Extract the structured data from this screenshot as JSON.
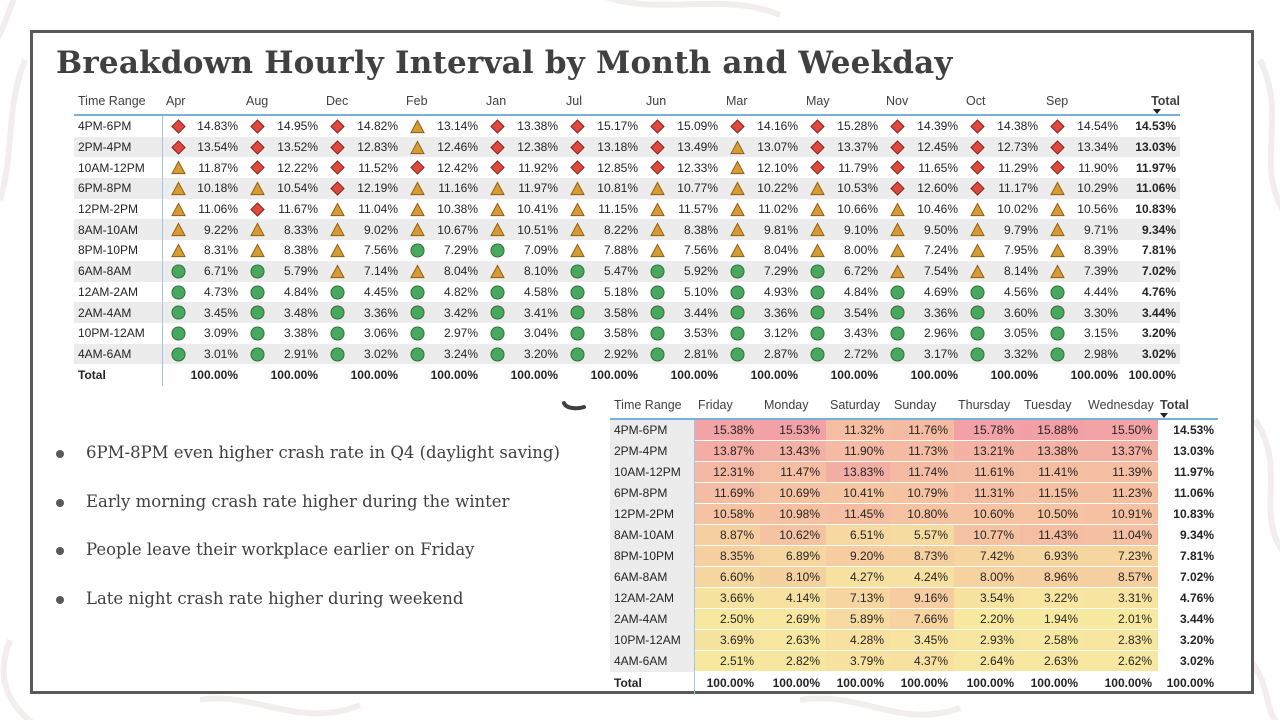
{
  "slide": {
    "title": "Breakdown Hourly Interval by Month and Weekday"
  },
  "colors": {
    "frame": "#595959",
    "title": "#404040",
    "header_underline": "#79b0de",
    "band": "#ececec",
    "diamond_red": "#e0483c",
    "triangle_orange": "#d89a32",
    "circle_green": "#48a85e",
    "heat_high": "#f2a4a8",
    "heat_low": "#f7e8a0"
  },
  "icon_legend": {
    "diamond": "red-diamond-icon",
    "triangle": "orange-triangle-icon",
    "circle": "green-circle-icon"
  },
  "month_table": {
    "header_label": "Time Range",
    "total_header": "Total",
    "months": [
      "Apr",
      "Aug",
      "Dec",
      "Feb",
      "Jan",
      "Jul",
      "Jun",
      "Mar",
      "May",
      "Nov",
      "Oct",
      "Sep"
    ],
    "rows": [
      {
        "label": "4PM-6PM",
        "values": [
          "14.83%",
          "14.95%",
          "14.82%",
          "13.14%",
          "13.38%",
          "15.17%",
          "15.09%",
          "14.16%",
          "15.28%",
          "14.39%",
          "14.38%",
          "14.54%"
        ],
        "icons": [
          "D",
          "D",
          "D",
          "T",
          "D",
          "D",
          "D",
          "D",
          "D",
          "D",
          "D",
          "D"
        ],
        "total": "14.53%"
      },
      {
        "label": "2PM-4PM",
        "values": [
          "13.54%",
          "13.52%",
          "12.83%",
          "12.46%",
          "12.38%",
          "13.18%",
          "13.49%",
          "13.07%",
          "13.37%",
          "12.45%",
          "12.73%",
          "13.34%"
        ],
        "icons": [
          "D",
          "D",
          "D",
          "T",
          "D",
          "D",
          "D",
          "T",
          "D",
          "D",
          "D",
          "D"
        ],
        "total": "13.03%"
      },
      {
        "label": "10AM-12PM",
        "values": [
          "11.87%",
          "12.22%",
          "11.52%",
          "12.42%",
          "11.92%",
          "12.85%",
          "12.33%",
          "12.10%",
          "11.79%",
          "11.65%",
          "11.29%",
          "11.90%"
        ],
        "icons": [
          "T",
          "D",
          "D",
          "D",
          "D",
          "D",
          "D",
          "T",
          "D",
          "D",
          "D",
          "D"
        ],
        "total": "11.97%"
      },
      {
        "label": "6PM-8PM",
        "values": [
          "10.18%",
          "10.54%",
          "12.19%",
          "11.16%",
          "11.97%",
          "10.81%",
          "10.77%",
          "10.22%",
          "10.53%",
          "12.60%",
          "11.17%",
          "10.29%"
        ],
        "icons": [
          "T",
          "T",
          "D",
          "T",
          "T",
          "T",
          "T",
          "T",
          "T",
          "D",
          "D",
          "T"
        ],
        "total": "11.06%"
      },
      {
        "label": "12PM-2PM",
        "values": [
          "11.06%",
          "11.67%",
          "11.04%",
          "10.38%",
          "10.41%",
          "11.15%",
          "11.57%",
          "11.02%",
          "10.66%",
          "10.46%",
          "10.02%",
          "10.56%"
        ],
        "icons": [
          "T",
          "D",
          "T",
          "T",
          "T",
          "T",
          "T",
          "T",
          "T",
          "T",
          "T",
          "T"
        ],
        "total": "10.83%"
      },
      {
        "label": "8AM-10AM",
        "values": [
          "9.22%",
          "8.33%",
          "9.02%",
          "10.67%",
          "10.51%",
          "8.22%",
          "8.38%",
          "9.81%",
          "9.10%",
          "9.50%",
          "9.79%",
          "9.71%"
        ],
        "icons": [
          "T",
          "T",
          "T",
          "T",
          "T",
          "T",
          "T",
          "T",
          "T",
          "T",
          "T",
          "T"
        ],
        "total": "9.34%"
      },
      {
        "label": "8PM-10PM",
        "values": [
          "8.31%",
          "8.38%",
          "7.56%",
          "7.29%",
          "7.09%",
          "7.88%",
          "7.56%",
          "8.04%",
          "8.00%",
          "7.24%",
          "7.95%",
          "8.39%"
        ],
        "icons": [
          "T",
          "T",
          "T",
          "C",
          "C",
          "T",
          "T",
          "T",
          "T",
          "T",
          "T",
          "T"
        ],
        "total": "7.81%"
      },
      {
        "label": "6AM-8AM",
        "values": [
          "6.71%",
          "5.79%",
          "7.14%",
          "8.04%",
          "8.10%",
          "5.47%",
          "5.92%",
          "7.29%",
          "6.72%",
          "7.54%",
          "8.14%",
          "7.39%"
        ],
        "icons": [
          "C",
          "C",
          "T",
          "T",
          "T",
          "C",
          "C",
          "C",
          "C",
          "T",
          "T",
          "T"
        ],
        "total": "7.02%"
      },
      {
        "label": "12AM-2AM",
        "values": [
          "4.73%",
          "4.84%",
          "4.45%",
          "4.82%",
          "4.58%",
          "5.18%",
          "5.10%",
          "4.93%",
          "4.84%",
          "4.69%",
          "4.56%",
          "4.44%"
        ],
        "icons": [
          "C",
          "C",
          "C",
          "C",
          "C",
          "C",
          "C",
          "C",
          "C",
          "C",
          "C",
          "C"
        ],
        "total": "4.76%"
      },
      {
        "label": "2AM-4AM",
        "values": [
          "3.45%",
          "3.48%",
          "3.36%",
          "3.42%",
          "3.41%",
          "3.58%",
          "3.44%",
          "3.36%",
          "3.54%",
          "3.36%",
          "3.60%",
          "3.30%"
        ],
        "icons": [
          "C",
          "C",
          "C",
          "C",
          "C",
          "C",
          "C",
          "C",
          "C",
          "C",
          "C",
          "C"
        ],
        "total": "3.44%"
      },
      {
        "label": "10PM-12AM",
        "values": [
          "3.09%",
          "3.38%",
          "3.06%",
          "2.97%",
          "3.04%",
          "3.58%",
          "3.53%",
          "3.12%",
          "3.43%",
          "2.96%",
          "3.05%",
          "3.15%"
        ],
        "icons": [
          "C",
          "C",
          "C",
          "C",
          "C",
          "C",
          "C",
          "C",
          "C",
          "C",
          "C",
          "C"
        ],
        "total": "3.20%"
      },
      {
        "label": "4AM-6AM",
        "values": [
          "3.01%",
          "2.91%",
          "3.02%",
          "3.24%",
          "3.20%",
          "2.92%",
          "2.81%",
          "2.87%",
          "2.72%",
          "3.17%",
          "3.32%",
          "2.98%"
        ],
        "icons": [
          "C",
          "C",
          "C",
          "C",
          "C",
          "C",
          "C",
          "C",
          "C",
          "C",
          "C",
          "C"
        ],
        "total": "3.02%"
      }
    ],
    "total_row": {
      "label": "Total",
      "values": [
        "100.00%",
        "100.00%",
        "100.00%",
        "100.00%",
        "100.00%",
        "100.00%",
        "100.00%",
        "100.00%",
        "100.00%",
        "100.00%",
        "100.00%",
        "100.00%"
      ],
      "total": "100.00%"
    }
  },
  "weekday_table": {
    "header_label": "Time Range",
    "total_header": "Total",
    "days": [
      "Friday",
      "Monday",
      "Saturday",
      "Sunday",
      "Thursday",
      "Tuesday",
      "Wednesday"
    ],
    "rows": [
      {
        "label": "4PM-6PM",
        "values": [
          "15.38%",
          "15.53%",
          "11.32%",
          "11.76%",
          "15.78%",
          "15.88%",
          "15.50%"
        ],
        "total": "14.53%"
      },
      {
        "label": "2PM-4PM",
        "values": [
          "13.87%",
          "13.43%",
          "11.90%",
          "11.73%",
          "13.21%",
          "13.38%",
          "13.37%"
        ],
        "total": "13.03%"
      },
      {
        "label": "10AM-12PM",
        "values": [
          "12.31%",
          "11.47%",
          "13.83%",
          "11.74%",
          "11.61%",
          "11.41%",
          "11.39%"
        ],
        "total": "11.97%"
      },
      {
        "label": "6PM-8PM",
        "values": [
          "11.69%",
          "10.69%",
          "10.41%",
          "10.79%",
          "11.31%",
          "11.15%",
          "11.23%"
        ],
        "total": "11.06%"
      },
      {
        "label": "12PM-2PM",
        "values": [
          "10.58%",
          "10.98%",
          "11.45%",
          "10.80%",
          "10.60%",
          "10.50%",
          "10.91%"
        ],
        "total": "10.83%"
      },
      {
        "label": "8AM-10AM",
        "values": [
          "8.87%",
          "10.62%",
          "6.51%",
          "5.57%",
          "10.77%",
          "11.43%",
          "11.04%"
        ],
        "total": "9.34%"
      },
      {
        "label": "8PM-10PM",
        "values": [
          "8.35%",
          "6.89%",
          "9.20%",
          "8.73%",
          "7.42%",
          "6.93%",
          "7.23%"
        ],
        "total": "7.81%"
      },
      {
        "label": "6AM-8AM",
        "values": [
          "6.60%",
          "8.10%",
          "4.27%",
          "4.24%",
          "8.00%",
          "8.96%",
          "8.57%"
        ],
        "total": "7.02%"
      },
      {
        "label": "12AM-2AM",
        "values": [
          "3.66%",
          "4.14%",
          "7.13%",
          "9.16%",
          "3.54%",
          "3.22%",
          "3.31%"
        ],
        "total": "4.76%"
      },
      {
        "label": "2AM-4AM",
        "values": [
          "2.50%",
          "2.69%",
          "5.89%",
          "7.66%",
          "2.20%",
          "1.94%",
          "2.01%"
        ],
        "total": "3.44%"
      },
      {
        "label": "10PM-12AM",
        "values": [
          "3.69%",
          "2.63%",
          "4.28%",
          "3.45%",
          "2.93%",
          "2.58%",
          "2.83%"
        ],
        "total": "3.20%"
      },
      {
        "label": "4AM-6AM",
        "values": [
          "2.51%",
          "2.82%",
          "3.79%",
          "4.37%",
          "2.64%",
          "2.63%",
          "2.62%"
        ],
        "total": "3.02%"
      }
    ],
    "total_row": {
      "label": "Total",
      "values": [
        "100.00%",
        "100.00%",
        "100.00%",
        "100.00%",
        "100.00%",
        "100.00%",
        "100.00%"
      ],
      "total": "100.00%"
    }
  },
  "bullets": [
    "6PM-8PM even higher crash rate in Q4 (daylight saving)",
    "Early morning crash rate higher during the winter",
    "People leave their workplace earlier on Friday",
    "Late night crash rate higher during weekend"
  ]
}
